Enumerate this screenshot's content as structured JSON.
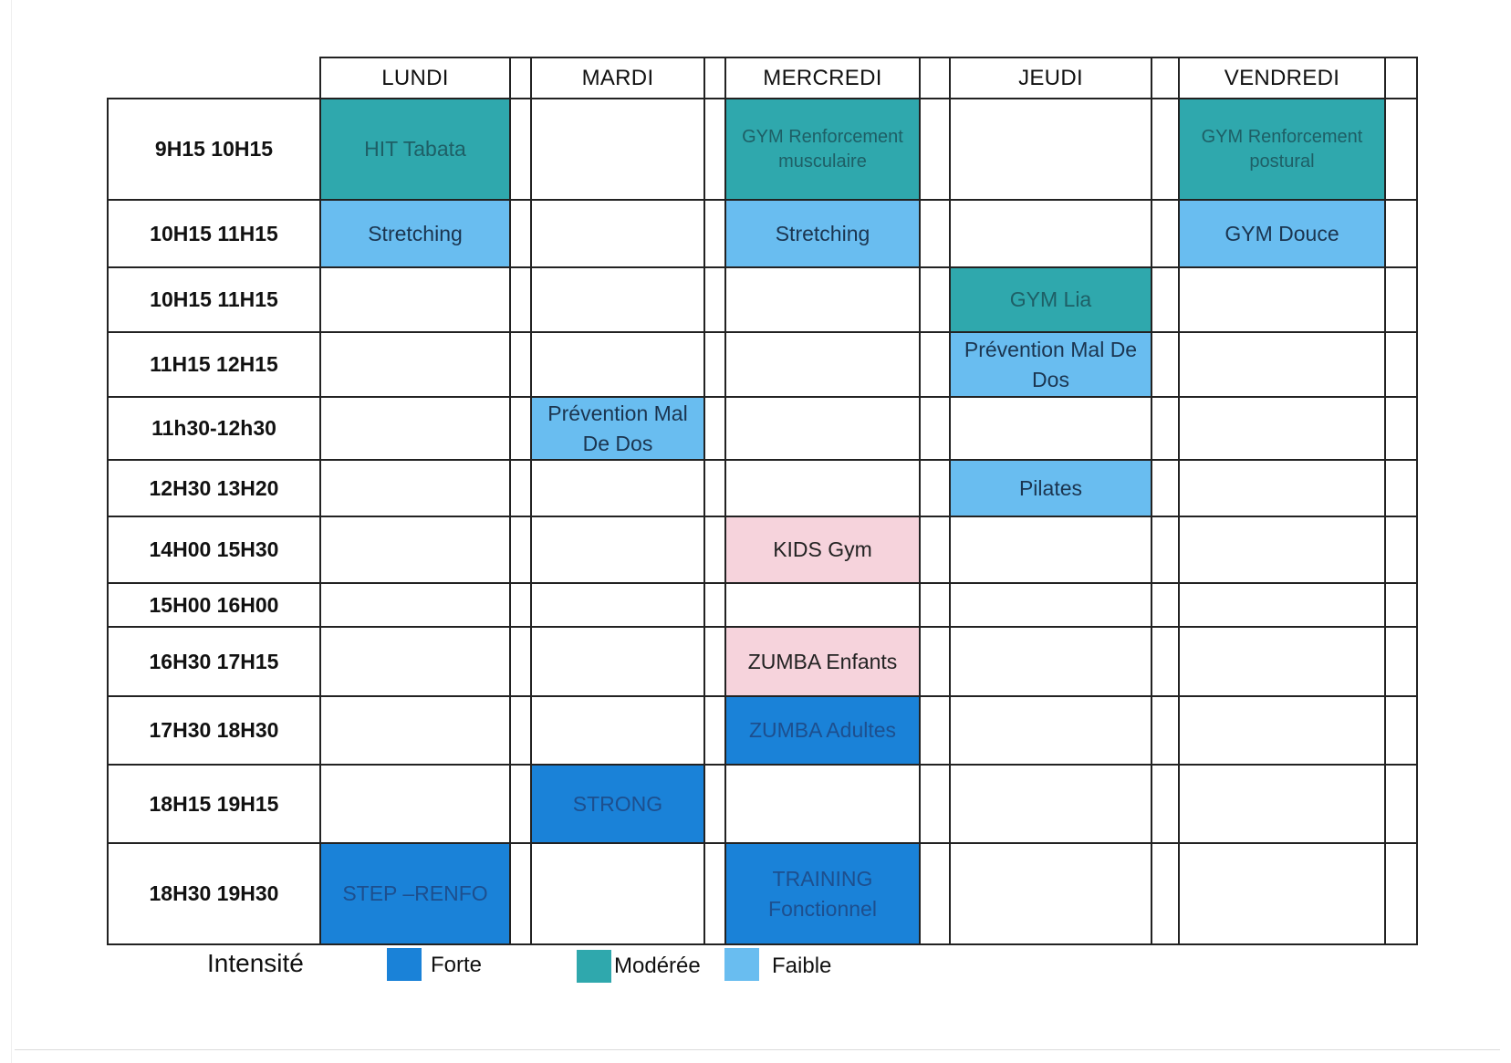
{
  "colors": {
    "forte": "#1a82d8",
    "moderee": "#2fa8ad",
    "faible": "#69bdf0",
    "kids": "#f6d3dc",
    "forte_text": "#1d4f8e",
    "moderee_text": "#1e5f66",
    "faible_text": "#1b3550",
    "kids_text": "#222222"
  },
  "days": [
    "LUNDI",
    "MARDI",
    "MERCREDI",
    "JEUDI",
    "VENDREDI"
  ],
  "rows": [
    {
      "time": "9H15 10H15",
      "cells": [
        {
          "text": "HIT Tabata",
          "intensity": "moderee"
        },
        null,
        {
          "text": "GYM Renforcement musculaire",
          "intensity": "moderee",
          "small": true
        },
        null,
        {
          "text": "GYM Renforcement postural",
          "intensity": "moderee",
          "small": true
        }
      ]
    },
    {
      "time": "10H15 11H15",
      "cells": [
        {
          "text": "Stretching",
          "intensity": "faible"
        },
        null,
        {
          "text": "Stretching",
          "intensity": "faible"
        },
        null,
        {
          "text": "GYM Douce",
          "intensity": "faible"
        }
      ]
    },
    {
      "time": "10H15 11H15",
      "cells": [
        null,
        null,
        null,
        {
          "text": "GYM Lia",
          "intensity": "moderee"
        },
        null
      ]
    },
    {
      "time": "11H15 12H15",
      "cells": [
        null,
        null,
        null,
        {
          "text": "Prévention Mal De Dos",
          "intensity": "faible"
        },
        null
      ]
    },
    {
      "time": "11h30-12h30",
      "cells": [
        null,
        {
          "text": "Prévention Mal De Dos",
          "intensity": "faible"
        },
        null,
        null,
        null
      ]
    },
    {
      "time": "12H30 13H20",
      "cells": [
        null,
        null,
        null,
        {
          "text": "Pilates",
          "intensity": "faible"
        },
        null
      ]
    },
    {
      "time": "14H00 15H30",
      "cells": [
        null,
        null,
        {
          "text": "KIDS Gym",
          "intensity": "kids"
        },
        null,
        null
      ]
    },
    {
      "time": "15H00 16H00",
      "cells": [
        null,
        null,
        null,
        null,
        null
      ]
    },
    {
      "time": "16H30  17H15",
      "cells": [
        null,
        null,
        {
          "text": "ZUMBA Enfants",
          "intensity": "kids"
        },
        null,
        null
      ]
    },
    {
      "time": "17H30 18H30",
      "cells": [
        null,
        null,
        {
          "text": "ZUMBA Adultes",
          "intensity": "forte"
        },
        null,
        null
      ]
    },
    {
      "time": "18H15 19H15",
      "cells": [
        null,
        {
          "text": "STRONG",
          "intensity": "forte"
        },
        null,
        null,
        null
      ]
    },
    {
      "time": "18H30 19H30",
      "cells": [
        {
          "text": "STEP –RENFO",
          "intensity": "forte"
        },
        null,
        {
          "text": "TRAINING Fonctionnel",
          "intensity": "forte"
        },
        null,
        null
      ]
    }
  ],
  "legend": {
    "title": "Intensité",
    "items": [
      {
        "key": "forte",
        "label": "Forte"
      },
      {
        "key": "moderee",
        "label": "Modérée"
      },
      {
        "key": "faible",
        "label": "Faible"
      }
    ]
  }
}
